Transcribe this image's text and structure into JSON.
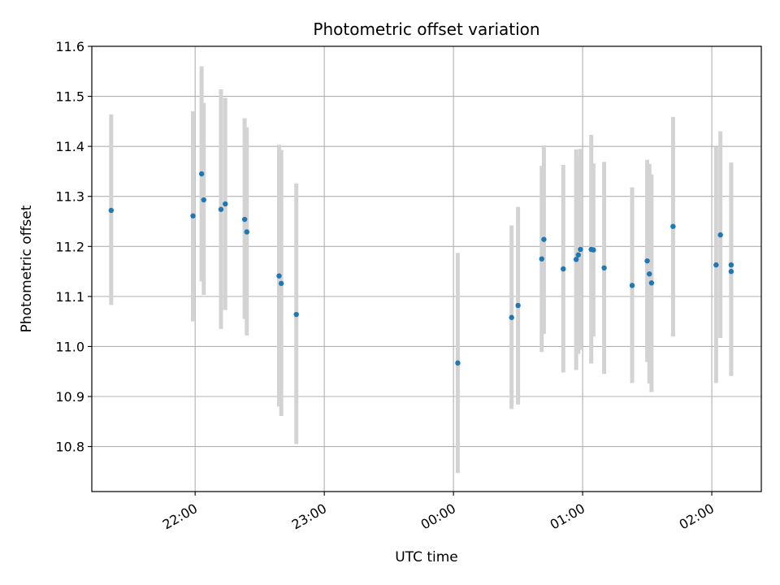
{
  "chart_data": {
    "type": "scatter",
    "title": "Photometric offset variation",
    "xlabel": "UTC time",
    "ylabel": "Photometric offset",
    "x_axis": {
      "kind": "time",
      "range": [
        "21:12",
        "02:23"
      ],
      "ticks": [
        "22:00",
        "23:00",
        "00:00",
        "01:00",
        "02:00"
      ]
    },
    "ylim": [
      10.71,
      11.6
    ],
    "y_ticks": [
      "10.8",
      "10.9",
      "11.0",
      "11.1",
      "11.2",
      "11.3",
      "11.4",
      "11.5",
      "11.6"
    ],
    "grid": true,
    "marker_color": "#1f77b4",
    "errorbar_color": "#d3d3d3",
    "points": [
      {
        "t": "21:21",
        "y": 11.272,
        "lo": 11.083,
        "hi": 11.464
      },
      {
        "t": "21:59",
        "y": 11.261,
        "lo": 11.05,
        "hi": 11.47
      },
      {
        "t": "22:03",
        "y": 11.345,
        "lo": 11.13,
        "hi": 11.56
      },
      {
        "t": "22:04",
        "y": 11.293,
        "lo": 11.103,
        "hi": 11.487
      },
      {
        "t": "22:12",
        "y": 11.274,
        "lo": 11.035,
        "hi": 11.514
      },
      {
        "t": "22:14",
        "y": 11.285,
        "lo": 11.073,
        "hi": 11.497
      },
      {
        "t": "22:23",
        "y": 11.254,
        "lo": 11.055,
        "hi": 11.456
      },
      {
        "t": "22:24",
        "y": 11.229,
        "lo": 11.022,
        "hi": 11.438
      },
      {
        "t": "22:39",
        "y": 11.141,
        "lo": 10.88,
        "hi": 11.403
      },
      {
        "t": "22:40",
        "y": 11.126,
        "lo": 10.861,
        "hi": 11.393
      },
      {
        "t": "22:47",
        "y": 11.064,
        "lo": 10.805,
        "hi": 11.326
      },
      {
        "t": "00:02",
        "y": 10.967,
        "lo": 10.747,
        "hi": 11.187
      },
      {
        "t": "00:27",
        "y": 11.058,
        "lo": 10.875,
        "hi": 11.242
      },
      {
        "t": "00:30",
        "y": 11.082,
        "lo": 10.884,
        "hi": 11.279
      },
      {
        "t": "00:41",
        "y": 11.175,
        "lo": 10.989,
        "hi": 11.361
      },
      {
        "t": "00:42",
        "y": 11.214,
        "lo": 11.025,
        "hi": 11.402
      },
      {
        "t": "00:51",
        "y": 11.155,
        "lo": 10.948,
        "hi": 11.363
      },
      {
        "t": "00:57",
        "y": 11.174,
        "lo": 10.953,
        "hi": 11.394
      },
      {
        "t": "00:58",
        "y": 11.183,
        "lo": 10.985,
        "hi": 11.38
      },
      {
        "t": "00:59",
        "y": 11.194,
        "lo": 10.993,
        "hi": 11.395
      },
      {
        "t": "01:04",
        "y": 11.194,
        "lo": 10.966,
        "hi": 11.423
      },
      {
        "t": "01:05",
        "y": 11.193,
        "lo": 11.02,
        "hi": 11.366
      },
      {
        "t": "01:10",
        "y": 11.157,
        "lo": 10.945,
        "hi": 11.369
      },
      {
        "t": "01:23",
        "y": 11.122,
        "lo": 10.927,
        "hi": 11.318
      },
      {
        "t": "01:30",
        "y": 11.171,
        "lo": 10.969,
        "hi": 11.373
      },
      {
        "t": "01:31",
        "y": 11.145,
        "lo": 10.926,
        "hi": 11.365
      },
      {
        "t": "01:32",
        "y": 11.127,
        "lo": 10.909,
        "hi": 11.344
      },
      {
        "t": "01:42",
        "y": 11.24,
        "lo": 11.02,
        "hi": 11.459
      },
      {
        "t": "02:02",
        "y": 11.163,
        "lo": 10.927,
        "hi": 11.399
      },
      {
        "t": "02:04",
        "y": 11.223,
        "lo": 11.017,
        "hi": 11.43
      },
      {
        "t": "02:09",
        "y": 11.163,
        "lo": 10.958,
        "hi": 11.368
      },
      {
        "t": "02:09",
        "y": 11.15,
        "lo": 10.941,
        "hi": 11.36
      }
    ]
  }
}
